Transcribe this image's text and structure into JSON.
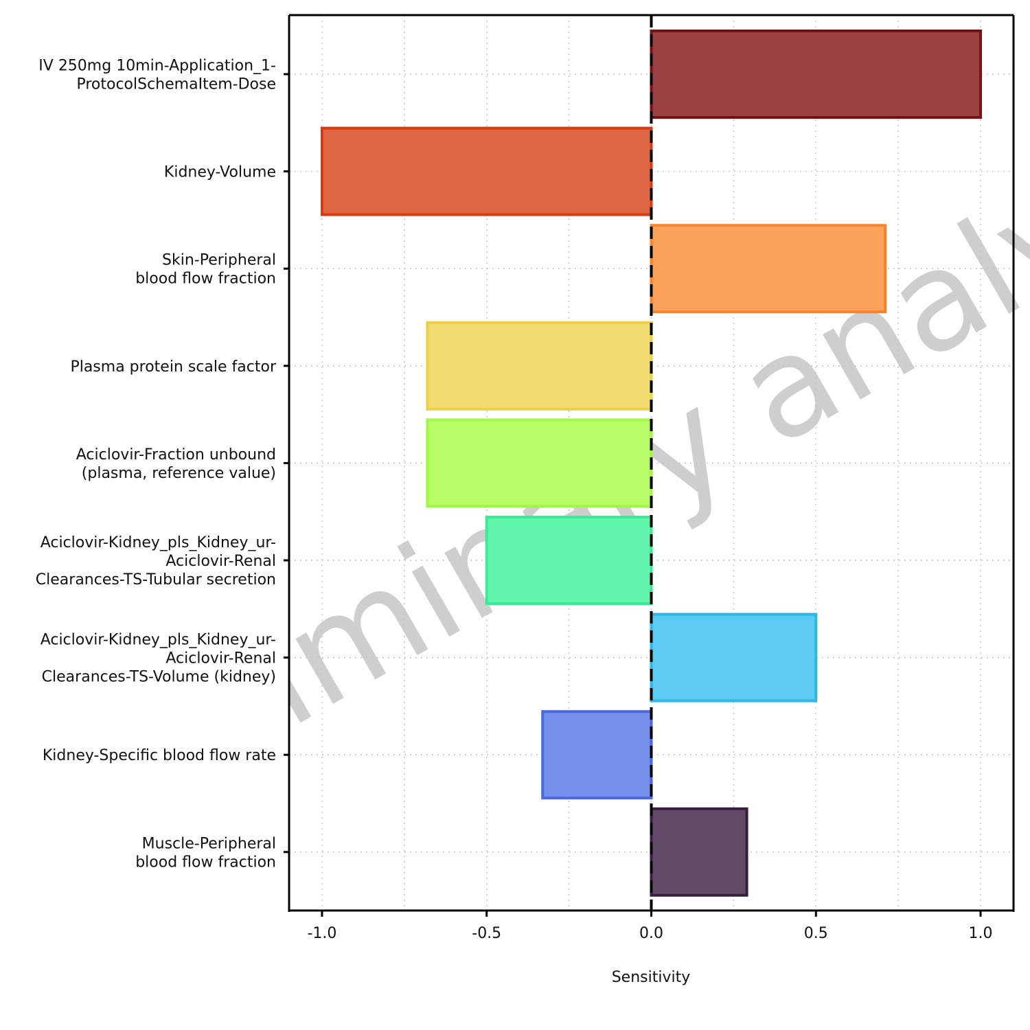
{
  "chart_data": {
    "type": "bar",
    "orientation": "horizontal",
    "title": "",
    "xlabel": "Sensitivity",
    "ylabel": "",
    "xlim": [
      -1.1,
      1.1
    ],
    "x_ticks": [
      "-1.0",
      "-0.5",
      "0.0",
      "0.5",
      "1.0"
    ],
    "x_tick_values": [
      -1.0,
      -0.5,
      0.0,
      0.5,
      1.0
    ],
    "grid": true,
    "legend": "none",
    "reference_line": {
      "x": 0,
      "style": "dashed",
      "color": "#000000"
    },
    "categories": [
      [
        "IV 250mg 10min-Application_1-",
        "ProtocolSchemaItem-Dose"
      ],
      [
        "Kidney-Volume"
      ],
      [
        "Skin-Peripheral",
        "blood flow fraction"
      ],
      [
        "Plasma protein scale factor"
      ],
      [
        "Aciclovir-Fraction unbound",
        "(plasma, reference value)"
      ],
      [
        "Aciclovir-Kidney_pls_Kidney_ur-",
        "Aciclovir-Renal",
        "Clearances-TS-Tubular secretion"
      ],
      [
        "Aciclovir-Kidney_pls_Kidney_ur-",
        "Aciclovir-Renal",
        "Clearances-TS-Volume (kidney)"
      ],
      [
        "Kidney-Specific blood flow rate"
      ],
      [
        "Muscle-Peripheral",
        "blood flow fraction"
      ]
    ],
    "values": [
      1.0,
      -1.0,
      0.71,
      -0.68,
      -0.68,
      -0.5,
      0.5,
      -0.33,
      0.29
    ],
    "fill_colors": [
      "#9b4143",
      "#e06744",
      "#fda25a",
      "#f1dd6f",
      "#b7fd66",
      "#60f6ab",
      "#5ccbf1",
      "#7490ec",
      "#634a69"
    ],
    "stroke_colors": [
      "#7a1010",
      "#d83a10",
      "#f8832a",
      "#ecce48",
      "#a2f648",
      "#38ec90",
      "#2bb6e6",
      "#4a69df",
      "#3a1e3f"
    ],
    "watermark": "Preliminary analysis"
  }
}
